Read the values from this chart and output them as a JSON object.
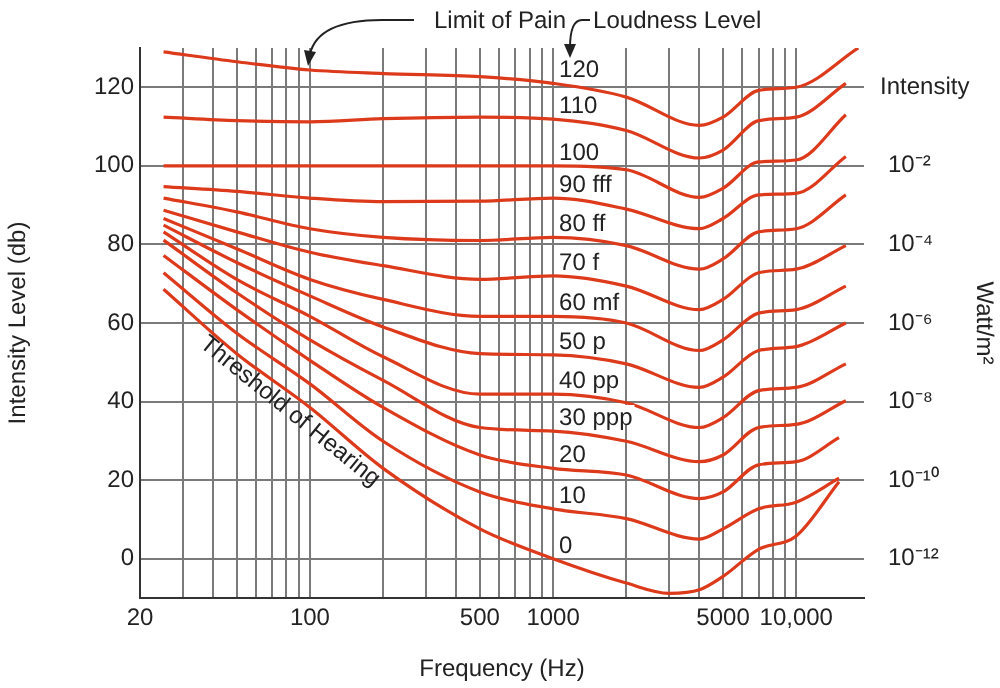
{
  "chart_data": {
    "type": "line",
    "xlabel": "Frequency (Hz)",
    "ylabel": "Intensity Level (db)",
    "y2label": "Watt/m²",
    "log": "x",
    "grid": true,
    "legend": false,
    "xlim": [
      20,
      19000
    ],
    "ylim": [
      -10,
      130
    ],
    "xticks": [
      20,
      {
        "value": 30,
        "label": null
      },
      {
        "value": 40,
        "label": null
      },
      {
        "value": 50,
        "label": null
      },
      {
        "value": 60,
        "label": null
      },
      {
        "value": 70,
        "label": null
      },
      {
        "value": 80,
        "label": null
      },
      {
        "value": 90,
        "label": null
      },
      100,
      {
        "value": 200,
        "label": null
      },
      {
        "value": 300,
        "label": null
      },
      {
        "value": 400,
        "label": null
      },
      500,
      {
        "value": 600,
        "label": null
      },
      {
        "value": 700,
        "label": null
      },
      {
        "value": 800,
        "label": null
      },
      {
        "value": 900,
        "label": null
      },
      1000,
      {
        "value": 2000,
        "label": null
      },
      {
        "value": 3000,
        "label": null
      },
      {
        "value": 4000,
        "label": null
      },
      5000,
      {
        "value": 6000,
        "label": null
      },
      {
        "value": 7000,
        "label": null
      },
      {
        "value": 8000,
        "label": null
      },
      {
        "value": 9000,
        "label": null
      },
      {
        "value": 10000,
        "label": "10,000"
      }
    ],
    "yticks": [
      0,
      20,
      40,
      60,
      80,
      100,
      120
    ],
    "annotations": [
      {
        "text": "Limit of Pain",
        "x": 100,
        "y": 124.4
      },
      "Loudness Level",
      "Threshold of Hearing",
      "Intensity",
      "10⁻¹²",
      "10⁻¹⁰",
      "10⁻⁸",
      "10⁻⁶",
      "10⁻⁴",
      "10⁻²"
    ],
    "series": [
      {
        "name": "120",
        "color": "#dd3a1c",
        "x": [
          25,
          50,
          100,
          200,
          500,
          1000,
          2000,
          4000,
          5000,
          7000,
          10000,
          18000
        ],
        "values": [
          129,
          126.5,
          124.4,
          123.5,
          122.7,
          121,
          117.5,
          110.3,
          112.4,
          119.2,
          120,
          130
        ]
      },
      {
        "name": "110",
        "color": "#dd3a1c",
        "x": [
          25,
          50,
          100,
          200,
          500,
          1000,
          2000,
          4000,
          5000,
          7000,
          10000,
          16000
        ],
        "values": [
          112.4,
          111.5,
          111.2,
          112,
          112.4,
          111.9,
          109,
          102,
          104,
          111.5,
          112.4,
          121
        ]
      },
      {
        "name": "100",
        "color": "#dd3a1c",
        "x": [
          25,
          50,
          100,
          200,
          500,
          1000,
          2000,
          4000,
          5000,
          7000,
          10000,
          16000
        ],
        "values": [
          100,
          100,
          100,
          100,
          100,
          100,
          99,
          92,
          94.3,
          101,
          101.5,
          113
        ]
      },
      {
        "name": "90 fff",
        "color": "#dd3a1c",
        "x": [
          25,
          50,
          100,
          200,
          500,
          1000,
          2000,
          4000,
          5000,
          7000,
          10000,
          16000
        ],
        "values": [
          94.7,
          93.5,
          91.8,
          90.9,
          91,
          91.8,
          89,
          84,
          86.6,
          92.6,
          93,
          102.4
        ]
      },
      {
        "name": "80 ff",
        "color": "#dd3a1c",
        "x": [
          25,
          50,
          100,
          200,
          500,
          1000,
          2000,
          4000,
          5000,
          7000,
          10000,
          16000
        ],
        "values": [
          91.8,
          88.3,
          84,
          81.8,
          81,
          81.8,
          79.7,
          73.7,
          76.3,
          83.2,
          84,
          92.6
        ]
      },
      {
        "name": "70 f",
        "color": "#dd3a1c",
        "x": [
          25,
          50,
          100,
          200,
          500,
          1000,
          2000,
          4000,
          5000,
          7000,
          10000,
          16000
        ],
        "values": [
          88.7,
          83.2,
          78,
          74.6,
          71.1,
          72,
          69.4,
          63.4,
          66,
          72.8,
          73.7,
          79.7
        ]
      },
      {
        "name": "60 mf",
        "color": "#dd3a1c",
        "x": [
          25,
          50,
          100,
          200,
          500,
          1000,
          2000,
          4000,
          5000,
          7000,
          10000,
          16000
        ],
        "values": [
          86.6,
          78.9,
          71.1,
          66,
          61.7,
          61.7,
          60,
          53,
          55.7,
          62.5,
          63.4,
          69.4
        ]
      },
      {
        "name": "50 p",
        "color": "#dd3a1c",
        "x": [
          25,
          50,
          100,
          200,
          500,
          1000,
          2000,
          4000,
          5000,
          7000,
          10000,
          16000
        ],
        "values": [
          84.9,
          75.4,
          66.9,
          59,
          52.2,
          51.9,
          49.6,
          43.6,
          46.2,
          53,
          54,
          60
        ]
      },
      {
        "name": "40 pp",
        "color": "#dd3a1c",
        "x": [
          25,
          50,
          100,
          200,
          500,
          1000,
          2000,
          4000,
          5000,
          7000,
          10000,
          16000
        ],
        "values": [
          83.2,
          71.1,
          61.7,
          51.4,
          41.9,
          41.9,
          39.7,
          33.4,
          35.9,
          42.8,
          43.6,
          49.6
        ]
      },
      {
        "name": "30 ppp",
        "color": "#dd3a1c",
        "x": [
          25,
          50,
          100,
          200,
          500,
          1000,
          2000,
          4000,
          5000,
          7000,
          10000,
          16000
        ],
        "values": [
          81.1,
          67.7,
          55.7,
          45.4,
          33.4,
          32.5,
          29.9,
          24.7,
          26.4,
          33.4,
          34.2,
          40.2
        ]
      },
      {
        "name": "20",
        "color": "#dd3a1c",
        "x": [
          25,
          50,
          100,
          200,
          500,
          1000,
          2000,
          4000,
          5000,
          7000,
          10000,
          15000
        ],
        "values": [
          77.2,
          63.4,
          50.5,
          38.5,
          26.4,
          23,
          21.3,
          15.3,
          17,
          23.9,
          24.7,
          30.8
        ]
      },
      {
        "name": "10",
        "color": "#dd3a1c",
        "x": [
          25,
          50,
          100,
          200,
          500,
          1000,
          2000,
          4000,
          5000,
          7000,
          10000,
          15000
        ],
        "values": [
          72.8,
          57.4,
          44.5,
          29.9,
          17,
          12.7,
          10.2,
          5,
          7.6,
          12.7,
          14.4,
          20.5
        ]
      },
      {
        "name": "0",
        "color": "#dd3a1c",
        "x": [
          25,
          50,
          100,
          200,
          500,
          1000,
          2000,
          3000,
          4000,
          5000,
          7000,
          10000,
          15000
        ],
        "values": [
          68.6,
          52.2,
          38.5,
          23,
          7.6,
          0,
          -6.2,
          -8.8,
          -7.9,
          -4.5,
          2.4,
          5.8,
          19.6
        ]
      }
    ]
  }
}
